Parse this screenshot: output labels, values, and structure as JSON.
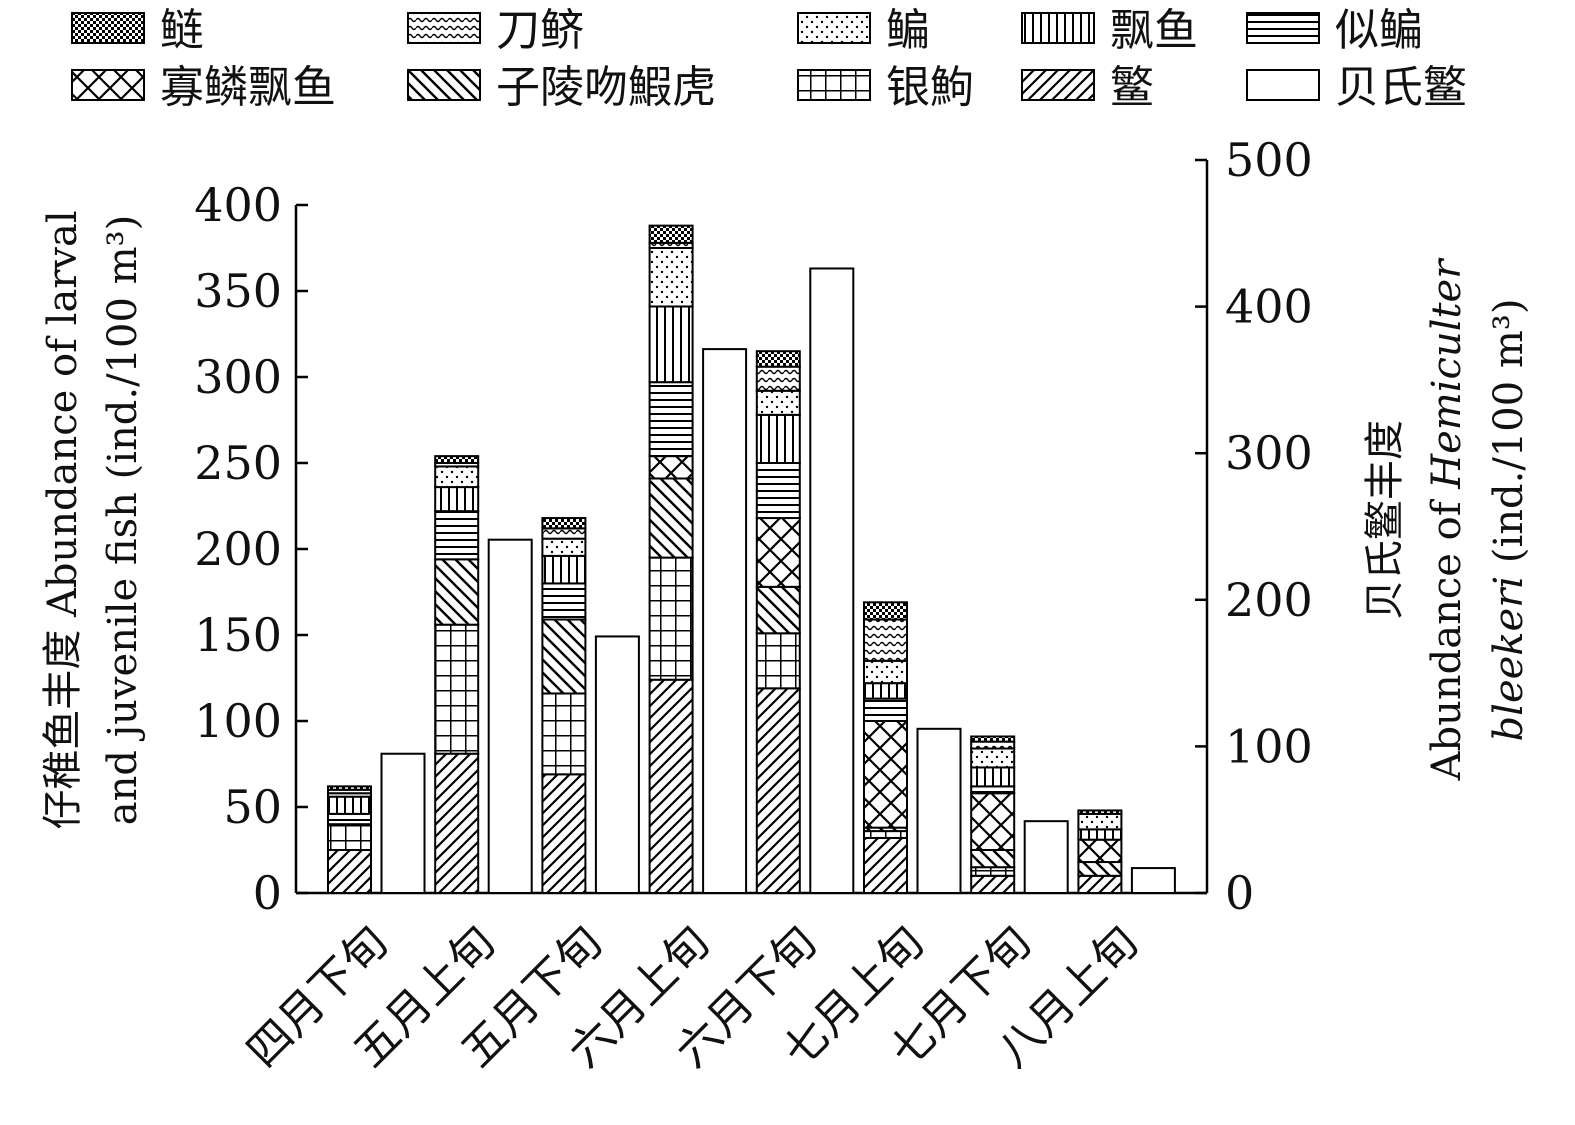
{
  "chart_data": {
    "type": "bar",
    "subtype": "stacked bar (left axis) with paired single bar (right axis)",
    "categories": [
      "四月下旬",
      "五月上旬",
      "五月下旬",
      "六月上旬",
      "六月下旬",
      "七月上旬",
      "七月下旬",
      "八月上旬"
    ],
    "ylabel": [
      "仔稚鱼丰度 Abundance of larval",
      "and juvenile fish (ind./100 m³)"
    ],
    "ylabel_right": {
      "line1": "贝氏鳘丰度",
      "line2": "Abundance of ",
      "line2_italic": "Hemiculter",
      "line3_italic": "bleekeri",
      "line3": " (ind./100 m³)"
    },
    "ylim": [
      0,
      400
    ],
    "ylim_right": [
      0,
      500
    ],
    "yticks": [
      "0",
      "50",
      "100",
      "150",
      "200",
      "250",
      "300",
      "350",
      "400"
    ],
    "yticks_right": [
      "0",
      "100",
      "200",
      "300",
      "400",
      "500"
    ],
    "grid": false,
    "legend_position": "top",
    "series": [
      {
        "name": "鳘",
        "pattern": "diagonal-hatch",
        "values": [
          25,
          81,
          69,
          124,
          119,
          32,
          10,
          10
        ]
      },
      {
        "name": "银鮈",
        "pattern": "grid",
        "values": [
          15,
          75,
          47,
          71,
          32,
          4,
          5,
          0
        ]
      },
      {
        "name": "子陵吻鰕虎",
        "pattern": "back-diagonal-hatch",
        "values": [
          0,
          38,
          43,
          46,
          27,
          2,
          10,
          8
        ]
      },
      {
        "name": "寡鳞飘鱼",
        "pattern": "cross-hatch",
        "values": [
          0,
          0,
          0,
          13,
          40,
          62,
          33,
          13
        ]
      },
      {
        "name": "似鳊",
        "pattern": "horizontal-lines",
        "values": [
          6,
          28,
          21,
          43,
          32,
          13,
          4,
          0
        ]
      },
      {
        "name": "飘鱼",
        "pattern": "vertical-lines",
        "values": [
          10,
          14,
          16,
          44,
          28,
          9,
          11,
          6
        ]
      },
      {
        "name": "鳊",
        "pattern": "dots",
        "values": [
          2,
          12,
          10,
          34,
          14,
          13,
          11,
          9
        ]
      },
      {
        "name": "刀鲚",
        "pattern": "waves",
        "values": [
          2,
          2,
          6,
          3,
          14,
          24,
          4,
          0
        ]
      },
      {
        "name": "鲢",
        "pattern": "checker",
        "values": [
          2,
          4,
          6,
          10,
          9,
          10,
          3,
          2
        ]
      }
    ],
    "right_series": {
      "name": "贝氏鳘",
      "pattern": "white",
      "values": [
        95,
        241,
        175,
        371,
        426,
        112,
        49,
        17
      ]
    }
  }
}
